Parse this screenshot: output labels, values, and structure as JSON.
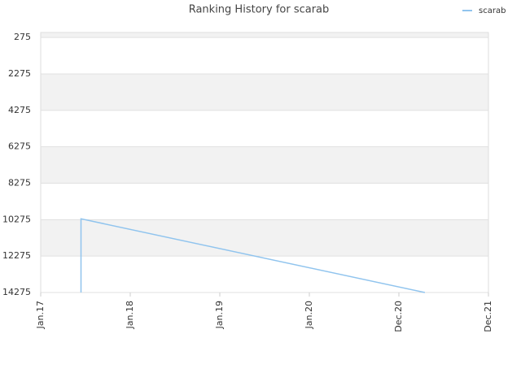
{
  "chart_data": {
    "type": "line",
    "title": "Ranking History for scarab",
    "x": [
      0.45,
      0.45,
      4.29
    ],
    "series": [
      {
        "name": "scarab",
        "color": "#90c4ee",
        "values": [
          14275,
          10230,
          14275
        ]
      }
    ],
    "xlim": [
      0,
      5
    ],
    "xticks": [
      {
        "value": 0,
        "label": "Jan.17"
      },
      {
        "value": 1,
        "label": "Jan.18"
      },
      {
        "value": 2,
        "label": "Jan.19"
      },
      {
        "value": 3,
        "label": "Jan.20"
      },
      {
        "value": 4,
        "label": "Dec.20"
      },
      {
        "value": 5,
        "label": "Dec.21"
      }
    ],
    "ylim": [
      14275,
      0
    ],
    "yticks": [
      275,
      2275,
      4275,
      6275,
      8275,
      10275,
      12275,
      14275
    ],
    "grid": true,
    "legend": "top-right"
  }
}
